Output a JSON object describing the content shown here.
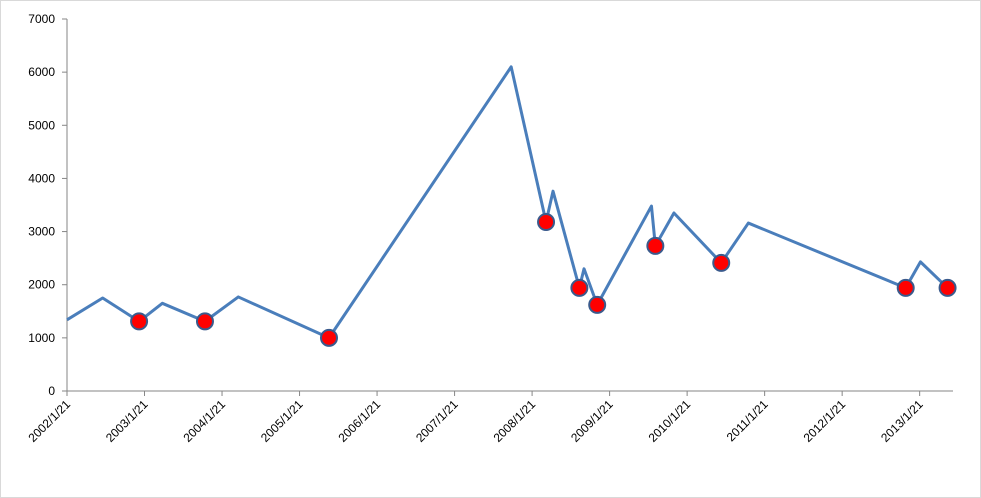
{
  "chart_data": {
    "type": "line",
    "x": [
      2002.05,
      2002.51,
      2002.98,
      2003.28,
      2003.83,
      2004.26,
      2005.43,
      2007.78,
      2008.23,
      2008.32,
      2008.66,
      2008.72,
      2008.89,
      2009.59,
      2009.64,
      2009.88,
      2010.49,
      2010.84,
      2012.87,
      2013.06,
      2013.41
    ],
    "series": [
      {
        "color": "#4a7ebb",
        "line": true,
        "markers": false,
        "values": [
          1340,
          1750,
          1310,
          1650,
          1310,
          1770,
          1000,
          6100,
          3180,
          3760,
          1940,
          2300,
          1620,
          3480,
          2730,
          3350,
          2410,
          3160,
          1940,
          2430,
          1940
        ]
      },
      {
        "color": "#ff0000",
        "line": false,
        "markers": true,
        "values": [
          null,
          null,
          1310,
          null,
          1310,
          null,
          1000,
          null,
          3180,
          null,
          1940,
          null,
          1620,
          null,
          2730,
          null,
          2410,
          null,
          1940,
          null,
          1940
        ]
      }
    ],
    "xlim": [
      2002.05,
      2013.48
    ],
    "xticks": [
      {
        "value": 2002.05,
        "label": "2002/1/21"
      },
      {
        "value": 2003.05,
        "label": "2003/1/21"
      },
      {
        "value": 2004.05,
        "label": "2004/1/21"
      },
      {
        "value": 2005.05,
        "label": "2005/1/21"
      },
      {
        "value": 2006.05,
        "label": "2006/1/21"
      },
      {
        "value": 2007.05,
        "label": "2007/1/21"
      },
      {
        "value": 2008.05,
        "label": "2008/1/21"
      },
      {
        "value": 2009.05,
        "label": "2009/1/21"
      },
      {
        "value": 2010.05,
        "label": "2010/1/21"
      },
      {
        "value": 2011.05,
        "label": "2011/1/21"
      },
      {
        "value": 2012.05,
        "label": "2012/1/21"
      },
      {
        "value": 2013.05,
        "label": "2013/1/21"
      }
    ],
    "ylim": [
      0,
      7000
    ],
    "yticks": [
      0,
      1000,
      2000,
      3000,
      4000,
      5000,
      6000,
      7000
    ],
    "grid": false
  }
}
